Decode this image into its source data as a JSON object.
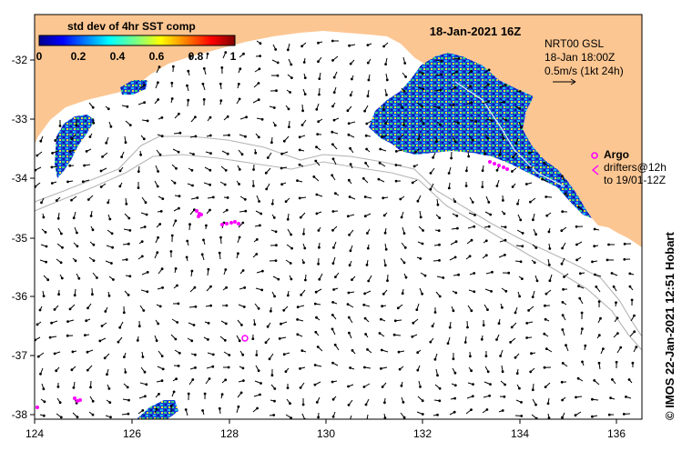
{
  "title": "18-Jan-2021 16Z",
  "colorbar": {
    "title": "std dev of 4hr SST comp",
    "ticks": [
      "0",
      "0.2",
      "0.4",
      "0.6",
      "0.8",
      "1"
    ],
    "range": [
      0,
      1
    ]
  },
  "current_legend": {
    "lines": [
      "NRT00 GSL",
      "18-Jan 18:00Z",
      "0.5m/s (1kt 24h)"
    ]
  },
  "argo_legend": {
    "label": "Argo",
    "lines": [
      "drifters@12h",
      "to 19/01-12Z"
    ]
  },
  "side_text": "© IMOS 22-Jan-2021 12:51 Hobart",
  "axes": {
    "lon_ticks": [
      "124",
      "126",
      "128",
      "130",
      "132",
      "134",
      "136"
    ],
    "lat_ticks": [
      "-32",
      "-33",
      "-34",
      "-35",
      "-36",
      "-37",
      "-38"
    ],
    "lon_range": [
      124,
      136.6
    ],
    "lat_range": [
      -38.1,
      -31.3
    ]
  },
  "colors": {
    "land": "#fcc692",
    "ocean": "#ffffff",
    "argo": "#ff00ff",
    "contour": "#b5b5b5",
    "vectors": "#000000"
  }
}
